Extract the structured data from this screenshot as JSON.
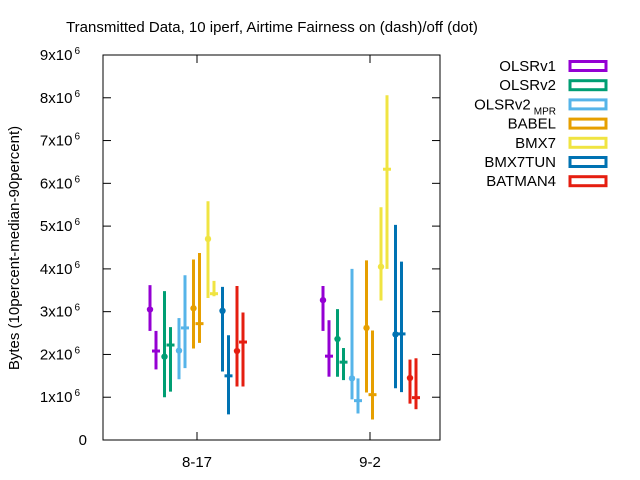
{
  "chart_data": {
    "type": "errorbar",
    "title": "Transmitted Data, 10 iperf, Airtime Fairness on (dash)/off (dot)",
    "xlabel": "",
    "ylabel": "Bytes (10percent-median-90percent)",
    "ylim": [
      0,
      9000000
    ],
    "y_ticks": [
      {
        "value": 0,
        "label": "0",
        "exp": ""
      },
      {
        "value": 1000000,
        "label": "1x10",
        "exp": "6"
      },
      {
        "value": 2000000,
        "label": "2x10",
        "exp": "6"
      },
      {
        "value": 3000000,
        "label": "3x10",
        "exp": "6"
      },
      {
        "value": 4000000,
        "label": "4x10",
        "exp": "6"
      },
      {
        "value": 5000000,
        "label": "5x10",
        "exp": "6"
      },
      {
        "value": 6000000,
        "label": "6x10",
        "exp": "6"
      },
      {
        "value": 7000000,
        "label": "7x10",
        "exp": "6"
      },
      {
        "value": 8000000,
        "label": "8x10",
        "exp": "6"
      },
      {
        "value": 9000000,
        "label": "9x10",
        "exp": "6"
      }
    ],
    "categories": [
      "8-17",
      "9-2"
    ],
    "grid": false,
    "legend_position": "right",
    "series": [
      {
        "name": "OLSRv1",
        "subscript": "",
        "color": "#9400d3",
        "points": [
          {
            "category": "8-17",
            "mode": "on",
            "p10": 2550000,
            "median": 3050000,
            "p90": 3620000
          },
          {
            "category": "8-17",
            "mode": "off",
            "p10": 1650000,
            "median": 2080000,
            "p90": 2550000
          },
          {
            "category": "9-2",
            "mode": "on",
            "p10": 2550000,
            "median": 3270000,
            "p90": 3600000
          },
          {
            "category": "9-2",
            "mode": "off",
            "p10": 1480000,
            "median": 1960000,
            "p90": 2800000
          }
        ]
      },
      {
        "name": "OLSRv2",
        "subscript": "",
        "color": "#009e73",
        "points": [
          {
            "category": "8-17",
            "mode": "on",
            "p10": 1000000,
            "median": 1950000,
            "p90": 3480000
          },
          {
            "category": "8-17",
            "mode": "off",
            "p10": 1130000,
            "median": 2220000,
            "p90": 2640000
          },
          {
            "category": "9-2",
            "mode": "on",
            "p10": 1480000,
            "median": 2360000,
            "p90": 3060000
          },
          {
            "category": "9-2",
            "mode": "off",
            "p10": 1400000,
            "median": 1820000,
            "p90": 2150000
          }
        ]
      },
      {
        "name": "OLSRv2",
        "subscript": "MPR",
        "color": "#56b4e9",
        "points": [
          {
            "category": "8-17",
            "mode": "on",
            "p10": 1420000,
            "median": 2090000,
            "p90": 2850000
          },
          {
            "category": "8-17",
            "mode": "off",
            "p10": 1680000,
            "median": 2620000,
            "p90": 3850000
          },
          {
            "category": "9-2",
            "mode": "on",
            "p10": 950000,
            "median": 1440000,
            "p90": 4000000
          },
          {
            "category": "9-2",
            "mode": "off",
            "p10": 620000,
            "median": 920000,
            "p90": 1440000
          }
        ]
      },
      {
        "name": "BABEL",
        "subscript": "",
        "color": "#e69f00",
        "points": [
          {
            "category": "8-17",
            "mode": "on",
            "p10": 2140000,
            "median": 3080000,
            "p90": 4220000
          },
          {
            "category": "8-17",
            "mode": "off",
            "p10": 2270000,
            "median": 2720000,
            "p90": 4370000
          },
          {
            "category": "9-2",
            "mode": "on",
            "p10": 1110000,
            "median": 2620000,
            "p90": 4200000
          },
          {
            "category": "9-2",
            "mode": "off",
            "p10": 480000,
            "median": 1060000,
            "p90": 2560000
          }
        ]
      },
      {
        "name": "BMX7",
        "subscript": "",
        "color": "#f0e442",
        "points": [
          {
            "category": "8-17",
            "mode": "on",
            "p10": 3320000,
            "median": 4700000,
            "p90": 5580000
          },
          {
            "category": "8-17",
            "mode": "off",
            "p10": 3360000,
            "median": 3420000,
            "p90": 3720000
          },
          {
            "category": "9-2",
            "mode": "on",
            "p10": 3260000,
            "median": 4050000,
            "p90": 5440000
          },
          {
            "category": "9-2",
            "mode": "off",
            "p10": 4000000,
            "median": 6330000,
            "p90": 8060000
          }
        ]
      },
      {
        "name": "BMX7TUN",
        "subscript": "",
        "color": "#0072b2",
        "points": [
          {
            "category": "8-17",
            "mode": "on",
            "p10": 1600000,
            "median": 3020000,
            "p90": 3580000
          },
          {
            "category": "8-17",
            "mode": "off",
            "p10": 600000,
            "median": 1500000,
            "p90": 2450000
          },
          {
            "category": "9-2",
            "mode": "on",
            "p10": 1210000,
            "median": 2470000,
            "p90": 5030000
          },
          {
            "category": "9-2",
            "mode": "off",
            "p10": 1120000,
            "median": 2480000,
            "p90": 4170000
          }
        ]
      },
      {
        "name": "BATMAN4",
        "subscript": "",
        "color": "#e51e10",
        "points": [
          {
            "category": "8-17",
            "mode": "on",
            "p10": 1250000,
            "median": 2080000,
            "p90": 3600000
          },
          {
            "category": "8-17",
            "mode": "off",
            "p10": 1250000,
            "median": 2290000,
            "p90": 2980000
          },
          {
            "category": "9-2",
            "mode": "on",
            "p10": 850000,
            "median": 1450000,
            "p90": 1880000
          },
          {
            "category": "9-2",
            "mode": "off",
            "p10": 720000,
            "median": 990000,
            "p90": 1910000
          }
        ]
      }
    ]
  }
}
